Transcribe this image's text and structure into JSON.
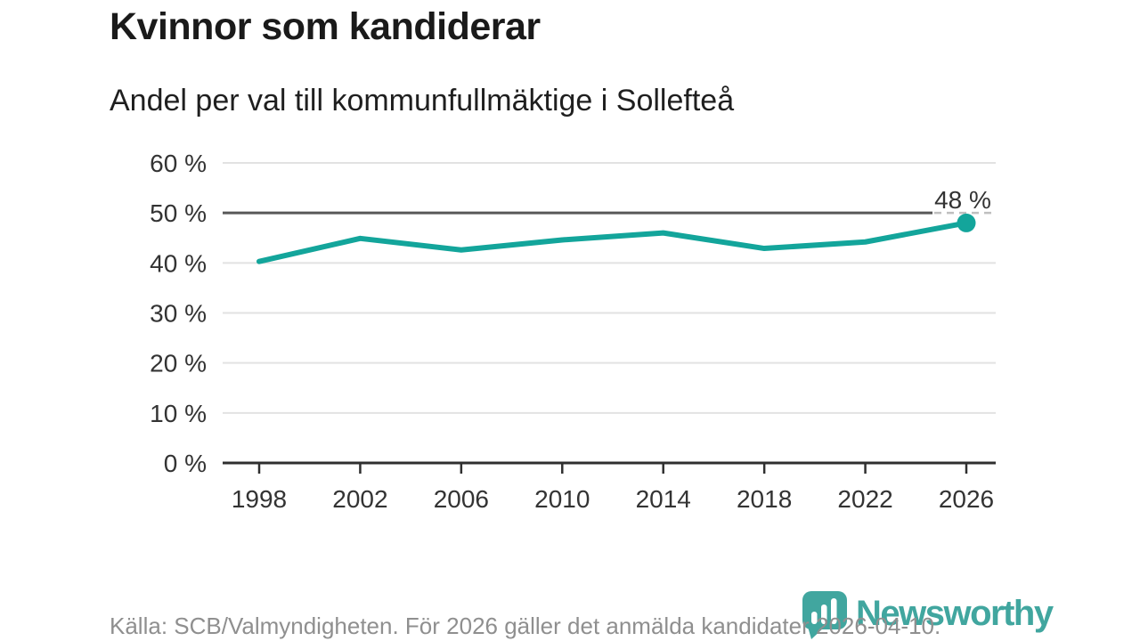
{
  "header": {
    "title": "Kvinnor som kandiderar",
    "subtitle": "Andel per val till kommunfullmäktige i Sollefteå"
  },
  "chart_data": {
    "type": "line",
    "categories": [
      "1998",
      "2002",
      "2006",
      "2010",
      "2014",
      "2018",
      "2022",
      "2026"
    ],
    "values": [
      40.3,
      44.9,
      42.6,
      44.6,
      46.0,
      42.9,
      44.2,
      48.0
    ],
    "title": "Kvinnor som kandiderar",
    "subtitle": "Andel per val till kommunfullmäktige i Sollefteå",
    "xlabel": "",
    "ylabel": "",
    "ylim": [
      0,
      60
    ],
    "ytick_step": 10,
    "y_tick_labels": [
      "0 %",
      "10 %",
      "20 %",
      "30 %",
      "40 %",
      "50 %",
      "60 %"
    ],
    "grid": true,
    "emphasized_gridline_value": 50,
    "end_point_label": "48 %",
    "end_point_marker": true,
    "line_color": "#13A59B"
  },
  "footer": {
    "source": "Källa: SCB/Valmyndigheten. För 2026 gäller det anmälda kandidater 2026-04-10.",
    "brand": {
      "name": "Newsworthy",
      "color": "#41A69F"
    }
  },
  "colors": {
    "accent": "#13A59B",
    "grid_light": "#E2E2E2",
    "grid_strong": "#585858",
    "axis": "#2F2F2F",
    "axis_text": "#333333",
    "label_text": "#1A1A1A",
    "source_text": "#8F8F8F",
    "dashed_label_line": "#BFBFBF"
  }
}
